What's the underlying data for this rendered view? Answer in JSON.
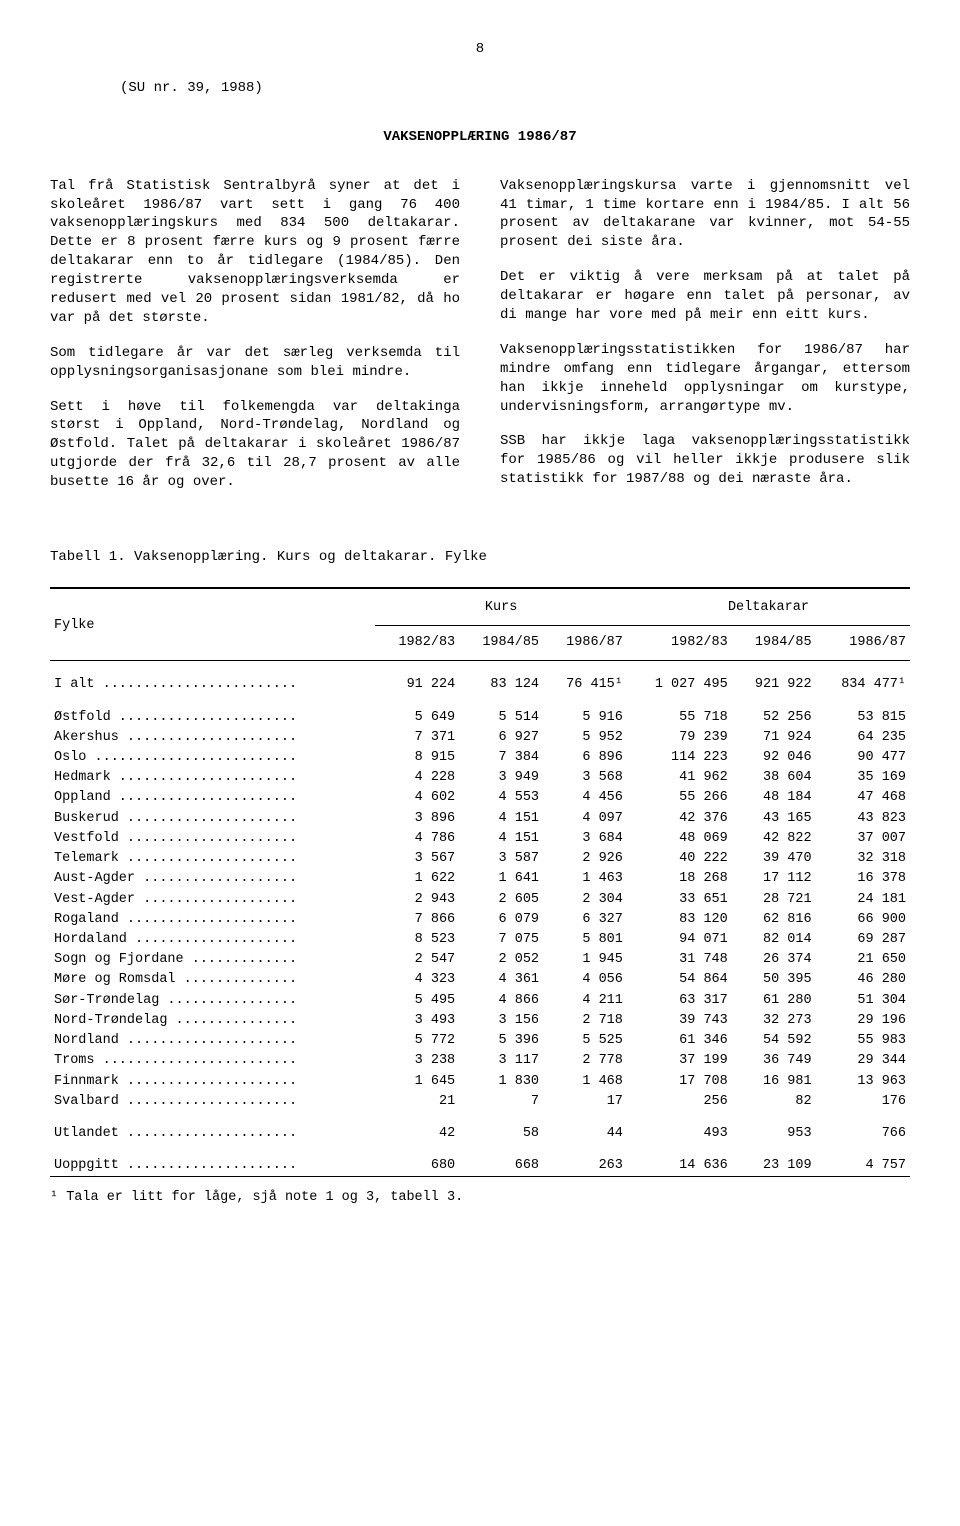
{
  "page_number": "8",
  "su_ref": "(SU nr. 39, 1988)",
  "title": "VAKSENOPPLÆRING 1986/87",
  "left_paras": [
    "Tal frå Statistisk Sentralbyrå syner at det i skoleåret 1986/87 vart sett i gang 76 400 vaksenopplæringskurs med 834 500 deltakarar. Dette er 8 prosent færre kurs og 9 prosent færre deltakarar enn to år tidlegare (1984/85). Den registrerte vaksenopplæringsverksemda er redusert med vel 20 prosent sidan 1981/82, då ho var på det største.",
    "Som tidlegare år var det særleg verksemda til opplysningsorganisasjonane som blei mindre.",
    "Sett i høve til folkemengda var deltakinga størst i Oppland, Nord-Trøndelag, Nordland og Østfold. Talet på deltakarar i skoleåret 1986/87 utgjorde der frå 32,6 til 28,7 prosent av alle busette 16 år og over."
  ],
  "right_paras": [
    "Vaksenopplæringskursa varte i gjennomsnitt vel 41 timar, 1 time kortare enn i 1984/85. I alt 56 prosent av deltakarane var kvinner, mot 54-55 prosent dei siste åra.",
    "Det er viktig å vere merksam på at talet på deltakarar er høgare enn talet på personar, av di mange har vore med på meir enn eitt kurs.",
    "Vaksenopplæringsstatistikken for 1986/87 har mindre omfang enn tidlegare årgangar, ettersom han ikkje inneheld opplysningar om kurstype, undervisningsform, arrangørtype mv.",
    "SSB har ikkje laga vaksenopplæringsstatistikk for 1985/86 og vil heller ikkje produsere slik statistikk for 1987/88 og dei næraste åra."
  ],
  "table": {
    "caption": "Tabell 1.  Vaksenopplæring.  Kurs og deltakarar.  Fylke",
    "col_label": "Fylke",
    "group_headers": [
      "Kurs",
      "Deltakarar"
    ],
    "year_headers": [
      "1982/83",
      "1984/85",
      "1986/87",
      "1982/83",
      "1984/85",
      "1986/87"
    ],
    "total_row": {
      "label": "I alt ........................",
      "values": [
        "91 224",
        "83 124",
        "76 415¹",
        "1 027 495",
        "921 922",
        "834 477¹"
      ]
    },
    "rows": [
      {
        "label": "Østfold ......................",
        "values": [
          "5 649",
          "5 514",
          "5 916",
          "55 718",
          "52 256",
          "53 815"
        ]
      },
      {
        "label": "Akershus .....................",
        "values": [
          "7 371",
          "6 927",
          "5 952",
          "79 239",
          "71 924",
          "64 235"
        ]
      },
      {
        "label": "Oslo .........................",
        "values": [
          "8 915",
          "7 384",
          "6 896",
          "114 223",
          "92 046",
          "90 477"
        ]
      },
      {
        "label": "Hedmark ......................",
        "values": [
          "4 228",
          "3 949",
          "3 568",
          "41 962",
          "38 604",
          "35 169"
        ]
      },
      {
        "label": "Oppland ......................",
        "values": [
          "4 602",
          "4 553",
          "4 456",
          "55 266",
          "48 184",
          "47 468"
        ]
      },
      {
        "label": "Buskerud .....................",
        "values": [
          "3 896",
          "4 151",
          "4 097",
          "42 376",
          "43 165",
          "43 823"
        ]
      },
      {
        "label": "Vestfold .....................",
        "values": [
          "4 786",
          "4 151",
          "3 684",
          "48 069",
          "42 822",
          "37 007"
        ]
      },
      {
        "label": "Telemark .....................",
        "values": [
          "3 567",
          "3 587",
          "2 926",
          "40 222",
          "39 470",
          "32 318"
        ]
      },
      {
        "label": "Aust-Agder ...................",
        "values": [
          "1 622",
          "1 641",
          "1 463",
          "18 268",
          "17 112",
          "16 378"
        ]
      },
      {
        "label": "Vest-Agder ...................",
        "values": [
          "2 943",
          "2 605",
          "2 304",
          "33 651",
          "28 721",
          "24 181"
        ]
      },
      {
        "label": "Rogaland .....................",
        "values": [
          "7 866",
          "6 079",
          "6 327",
          "83 120",
          "62 816",
          "66 900"
        ]
      },
      {
        "label": "Hordaland ....................",
        "values": [
          "8 523",
          "7 075",
          "5 801",
          "94 071",
          "82 014",
          "69 287"
        ]
      },
      {
        "label": "Sogn og Fjordane .............",
        "values": [
          "2 547",
          "2 052",
          "1 945",
          "31 748",
          "26 374",
          "21 650"
        ]
      },
      {
        "label": "Møre og Romsdal ..............",
        "values": [
          "4 323",
          "4 361",
          "4 056",
          "54 864",
          "50 395",
          "46 280"
        ]
      },
      {
        "label": "Sør-Trøndelag ................",
        "values": [
          "5 495",
          "4 866",
          "4 211",
          "63 317",
          "61 280",
          "51 304"
        ]
      },
      {
        "label": "Nord-Trøndelag ...............",
        "values": [
          "3 493",
          "3 156",
          "2 718",
          "39 743",
          "32 273",
          "29 196"
        ]
      },
      {
        "label": "Nordland .....................",
        "values": [
          "5 772",
          "5 396",
          "5 525",
          "61 346",
          "54 592",
          "55 983"
        ]
      },
      {
        "label": "Troms ........................",
        "values": [
          "3 238",
          "3 117",
          "2 778",
          "37 199",
          "36 749",
          "29 344"
        ]
      },
      {
        "label": "Finnmark .....................",
        "values": [
          "1 645",
          "1 830",
          "1 468",
          "17 708",
          "16 981",
          "13 963"
        ]
      },
      {
        "label": "Svalbard .....................",
        "values": [
          "21",
          "7",
          "17",
          "256",
          "82",
          "176"
        ]
      }
    ],
    "extra_rows": [
      {
        "label": "Utlandet .....................",
        "values": [
          "42",
          "58",
          "44",
          "493",
          "953",
          "766"
        ]
      },
      {
        "label": "Uoppgitt .....................",
        "values": [
          "680",
          "668",
          "263",
          "14 636",
          "23 109",
          "4 757"
        ]
      }
    ],
    "footnote": "¹ Tala er litt for låge, sjå note 1 og 3, tabell 3."
  }
}
